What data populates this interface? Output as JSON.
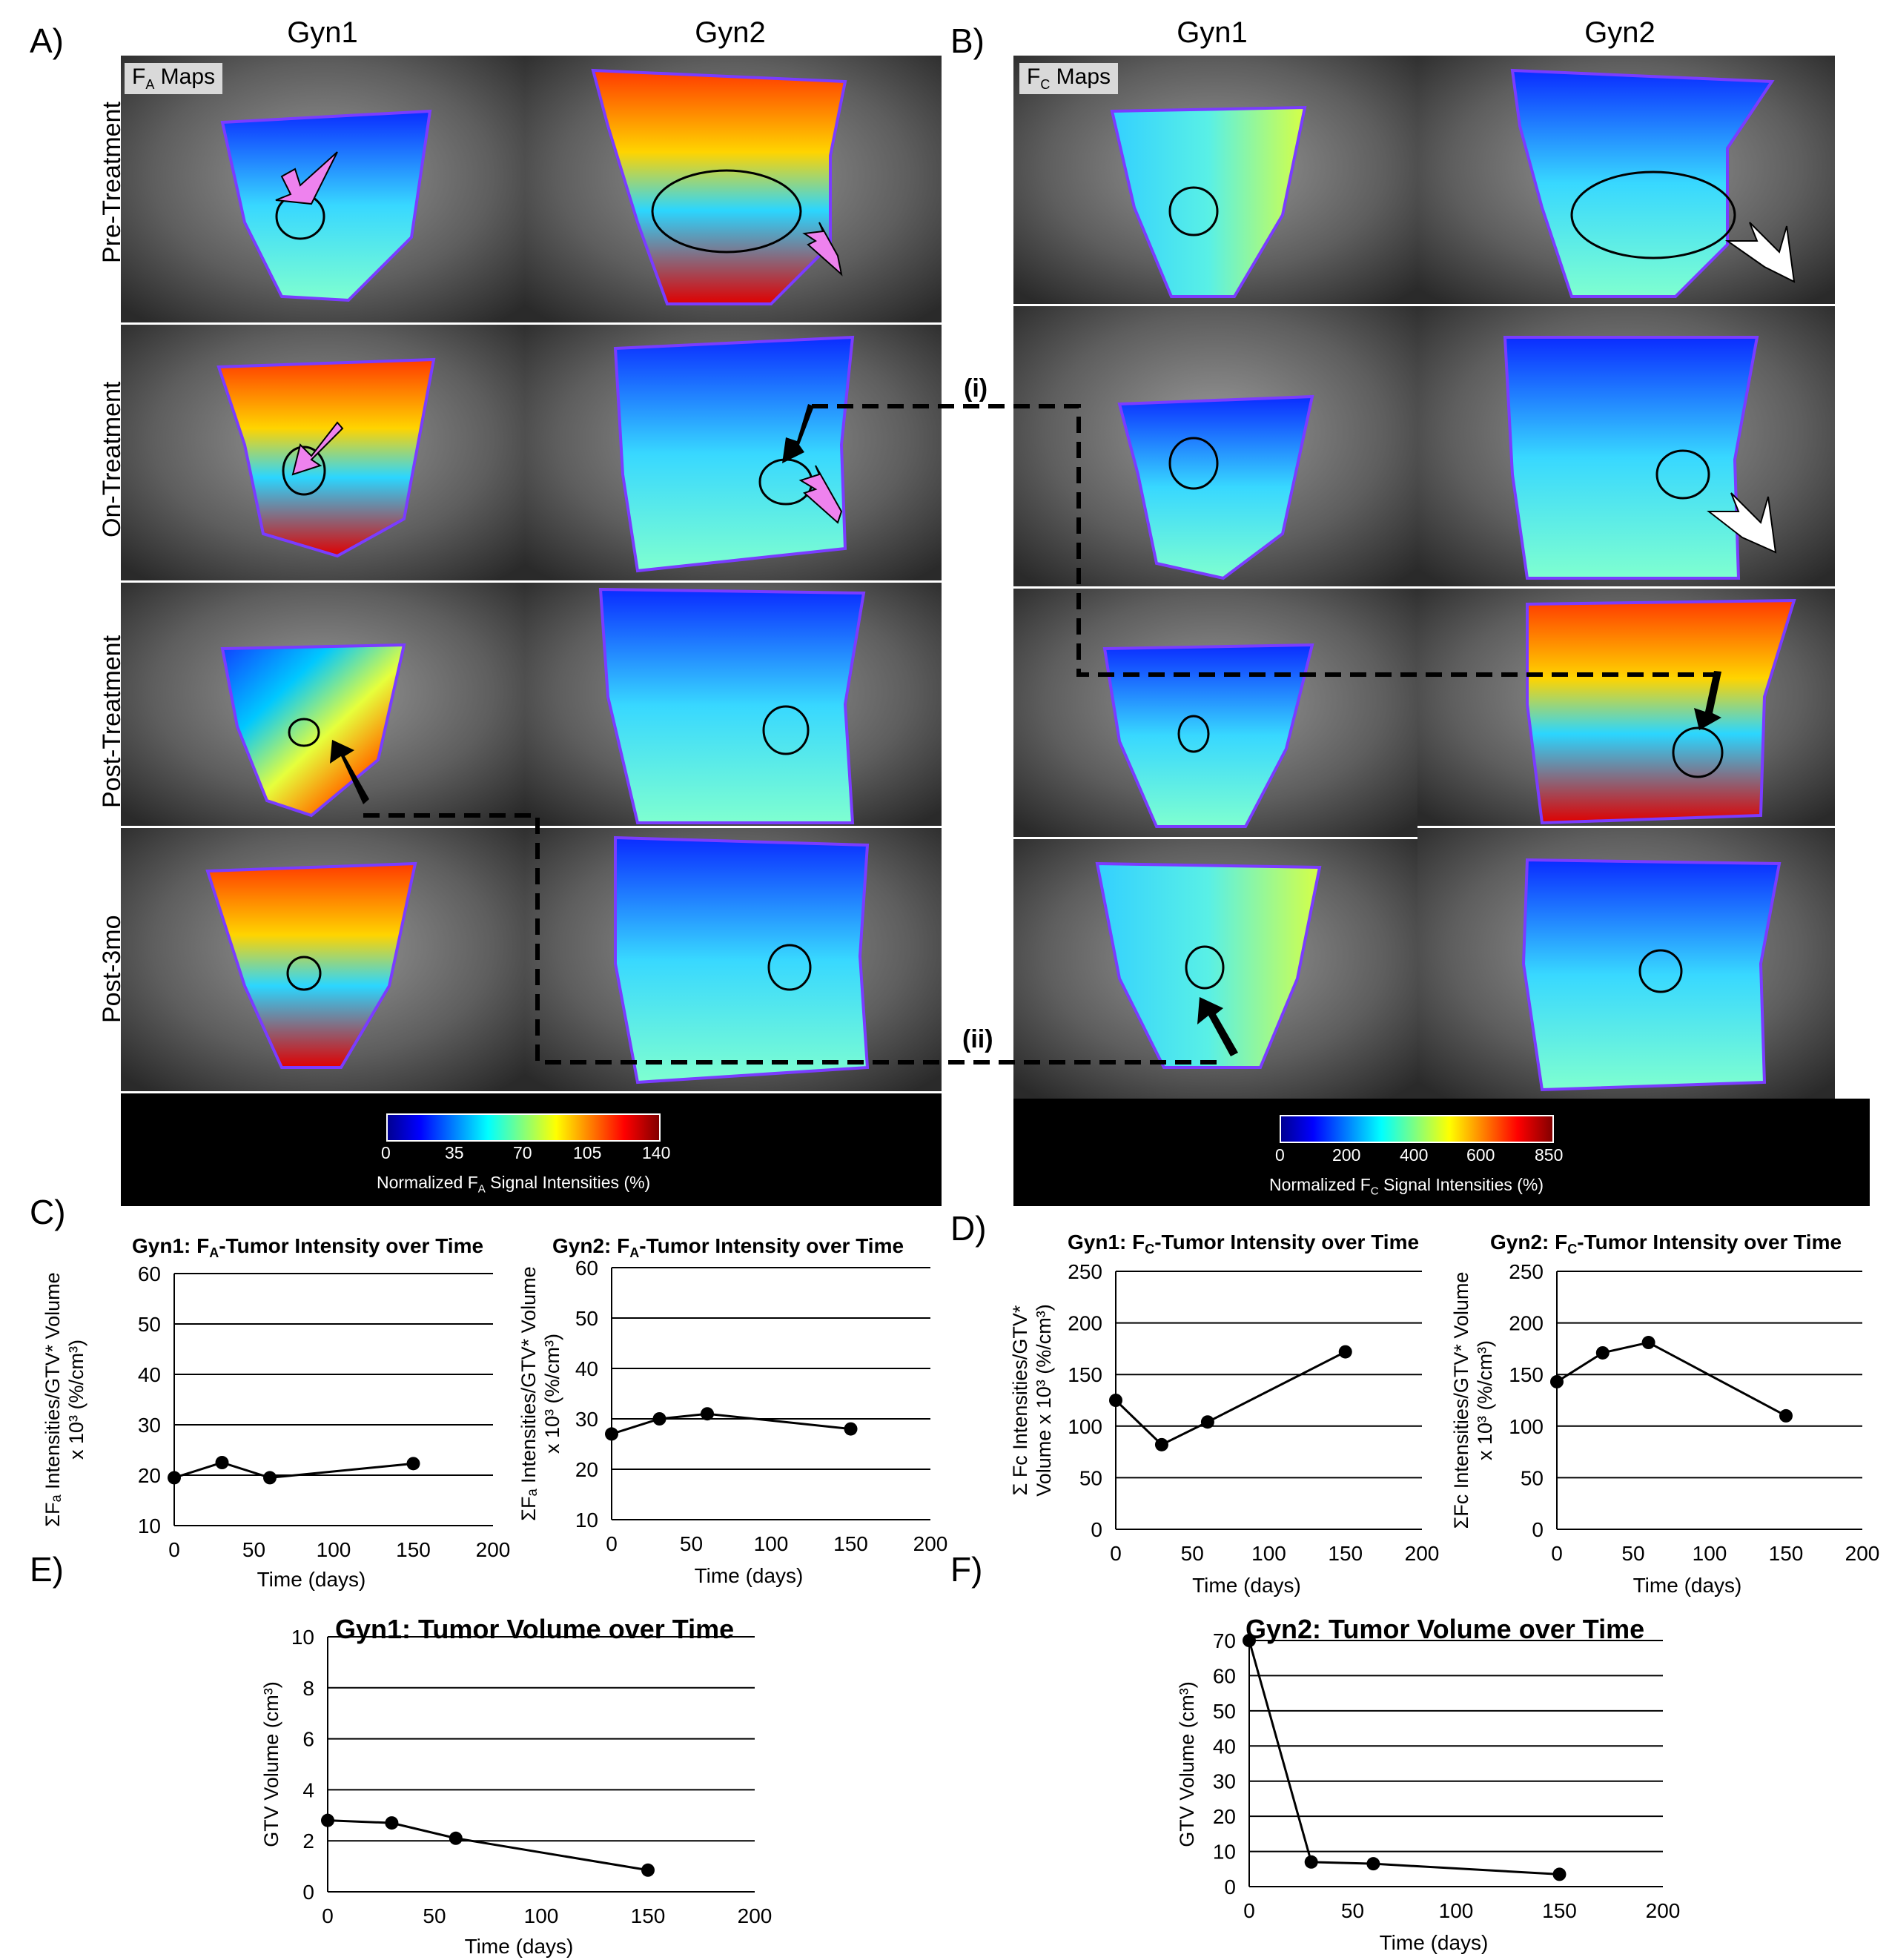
{
  "panels": {
    "A": {
      "letter": "A)",
      "col1": "Gyn1",
      "col2": "Gyn2",
      "map_tag": "F",
      "map_tag_sub": "A",
      "map_tag_rest": " Maps"
    },
    "B": {
      "letter": "B)",
      "col1": "Gyn1",
      "col2": "Gyn2",
      "map_tag": "F",
      "map_tag_sub": "C",
      "map_tag_rest": " Maps"
    },
    "C": {
      "letter": "C)"
    },
    "D": {
      "letter": "D)"
    },
    "E": {
      "letter": "E)"
    },
    "F": {
      "letter": "F)"
    }
  },
  "rows": [
    "Pre-Treatment",
    "On-Treatment",
    "Post-Treatment",
    "Post-3mo"
  ],
  "annotations": {
    "i": "(i)",
    "ii": "(ii)"
  },
  "colorbars": {
    "A": {
      "ticks": [
        "0",
        "35",
        "70",
        "105",
        "140"
      ],
      "label_pre": "Normalized F",
      "label_sub": "A",
      "label_post": " Signal Intensities (%)"
    },
    "B": {
      "ticks": [
        "0",
        "200",
        "400",
        "600",
        "850"
      ],
      "label_pre": "Normalized F",
      "label_sub": "C",
      "label_post": " Signal Intensities (%)"
    }
  },
  "colors": {
    "line": "#000000",
    "grid": "#000000",
    "pink_arrow": "#ee82ee",
    "white_arrow": "#ffffff",
    "black_arrow": "#000000",
    "colorbar_bg": "#000000"
  },
  "chart_data": [
    {
      "id": "C1",
      "type": "line",
      "title_pre": "Gyn1: F",
      "title_sub": "A",
      "title_post": "-Tumor Intensity over Time",
      "ylabel_lines": [
        "ΣFₐ Intensities/GTV* Volume",
        "x 10³ (%/cm³)"
      ],
      "xlabel": "Time (days)",
      "x": [
        0,
        30,
        60,
        150
      ],
      "y": [
        19.5,
        22.5,
        19.5,
        22.3
      ],
      "xlim": [
        0,
        200
      ],
      "ylim": [
        10,
        60
      ],
      "xticks": [
        0,
        50,
        100,
        150,
        200
      ],
      "yticks": [
        10,
        20,
        30,
        40,
        50,
        60
      ]
    },
    {
      "id": "C2",
      "type": "line",
      "title_pre": "Gyn2: F",
      "title_sub": "A",
      "title_post": "-Tumor Intensity over Time",
      "ylabel_lines": [
        "ΣFₐ Intensities/GTV* Volume",
        "x 10³ (%/cm³)"
      ],
      "xlabel": "Time (days)",
      "x": [
        0,
        30,
        60,
        150
      ],
      "y": [
        27,
        30,
        31,
        28
      ],
      "xlim": [
        0,
        200
      ],
      "ylim": [
        10,
        60
      ],
      "xticks": [
        0,
        50,
        100,
        150,
        200
      ],
      "yticks": [
        10,
        20,
        30,
        40,
        50,
        60
      ]
    },
    {
      "id": "D1",
      "type": "line",
      "title_pre": "Gyn1: F",
      "title_sub": "C",
      "title_post": "-Tumor Intensity over Time",
      "ylabel_lines": [
        "Σ Fᴄ Intensities/GTV*",
        "Volume x 10³ (%/cm³)"
      ],
      "xlabel": "Time (days)",
      "x": [
        0,
        30,
        60,
        150
      ],
      "y": [
        125,
        82,
        104,
        172
      ],
      "xlim": [
        0,
        200
      ],
      "ylim": [
        0,
        250
      ],
      "xticks": [
        0,
        50,
        100,
        150,
        200
      ],
      "yticks": [
        0,
        50,
        100,
        150,
        200,
        250
      ]
    },
    {
      "id": "D2",
      "type": "line",
      "title_pre": "Gyn2: F",
      "title_sub": "C",
      "title_post": "-Tumor Intensity over Time",
      "ylabel_lines": [
        "ΣFᴄ Intensities/GTV* Volume",
        "x 10³ (%/cm³)"
      ],
      "xlabel": "Time (days)",
      "x": [
        0,
        30,
        60,
        150
      ],
      "y": [
        143,
        171,
        181,
        110
      ],
      "xlim": [
        0,
        200
      ],
      "ylim": [
        0,
        250
      ],
      "xticks": [
        0,
        50,
        100,
        150,
        200
      ],
      "yticks": [
        0,
        50,
        100,
        150,
        200,
        250
      ]
    },
    {
      "id": "E",
      "type": "line",
      "title": "Gyn1: Tumor Volume over Time",
      "ylabel": "GTV Volume (cm³)",
      "xlabel": "Time (days)",
      "x": [
        0,
        30,
        60,
        150
      ],
      "y": [
        2.8,
        2.7,
        2.1,
        0.85
      ],
      "xlim": [
        0,
        200
      ],
      "ylim": [
        0,
        10
      ],
      "xticks": [
        0,
        50,
        100,
        150,
        200
      ],
      "yticks": [
        0,
        2,
        4,
        6,
        8,
        10
      ]
    },
    {
      "id": "F",
      "type": "line",
      "title": "Gyn2: Tumor Volume over Time",
      "ylabel": "GTV Volume (cm³)",
      "xlabel": "Time (days)",
      "x": [
        0,
        30,
        60,
        150
      ],
      "y": [
        70,
        7,
        6.5,
        3.5
      ],
      "xlim": [
        0,
        200
      ],
      "ylim": [
        0,
        70
      ],
      "xticks": [
        0,
        50,
        100,
        150,
        200
      ],
      "yticks": [
        0,
        10,
        20,
        30,
        40,
        50,
        60,
        70
      ]
    }
  ]
}
